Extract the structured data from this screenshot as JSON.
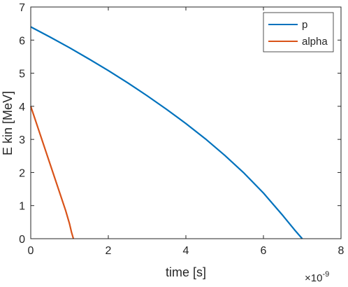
{
  "chart_data": {
    "type": "line",
    "title": "",
    "xlabel": "time [s]",
    "ylabel": "E kin [MeV]",
    "x_multiplier_label": "×10",
    "x_multiplier_exponent": "-9",
    "xlim": [
      0,
      8
    ],
    "ylim": [
      0,
      7
    ],
    "x_ticks": [
      0,
      2,
      4,
      6,
      8
    ],
    "y_ticks": [
      0,
      1,
      2,
      3,
      4,
      5,
      6,
      7
    ],
    "grid": false,
    "legend_position": "top-right",
    "series": [
      {
        "name": "p",
        "color": "#0072BD",
        "x": [
          0,
          0.5,
          1,
          1.5,
          2,
          2.5,
          3,
          3.5,
          4,
          4.5,
          5,
          5.5,
          6,
          6.5,
          6.8,
          7.0
        ],
        "y": [
          6.4,
          6.09,
          5.77,
          5.43,
          5.08,
          4.71,
          4.32,
          3.91,
          3.48,
          3.02,
          2.52,
          1.98,
          1.38,
          0.7,
          0.27,
          0.0
        ]
      },
      {
        "name": "alpha",
        "color": "#D95319",
        "x": [
          0,
          0.1,
          0.2,
          0.3,
          0.4,
          0.5,
          0.6,
          0.7,
          0.8,
          0.9,
          1.0,
          1.05,
          1.1
        ],
        "y": [
          4.0,
          3.65,
          3.3,
          2.95,
          2.6,
          2.25,
          1.9,
          1.55,
          1.2,
          0.85,
          0.45,
          0.2,
          0.0
        ]
      }
    ]
  }
}
